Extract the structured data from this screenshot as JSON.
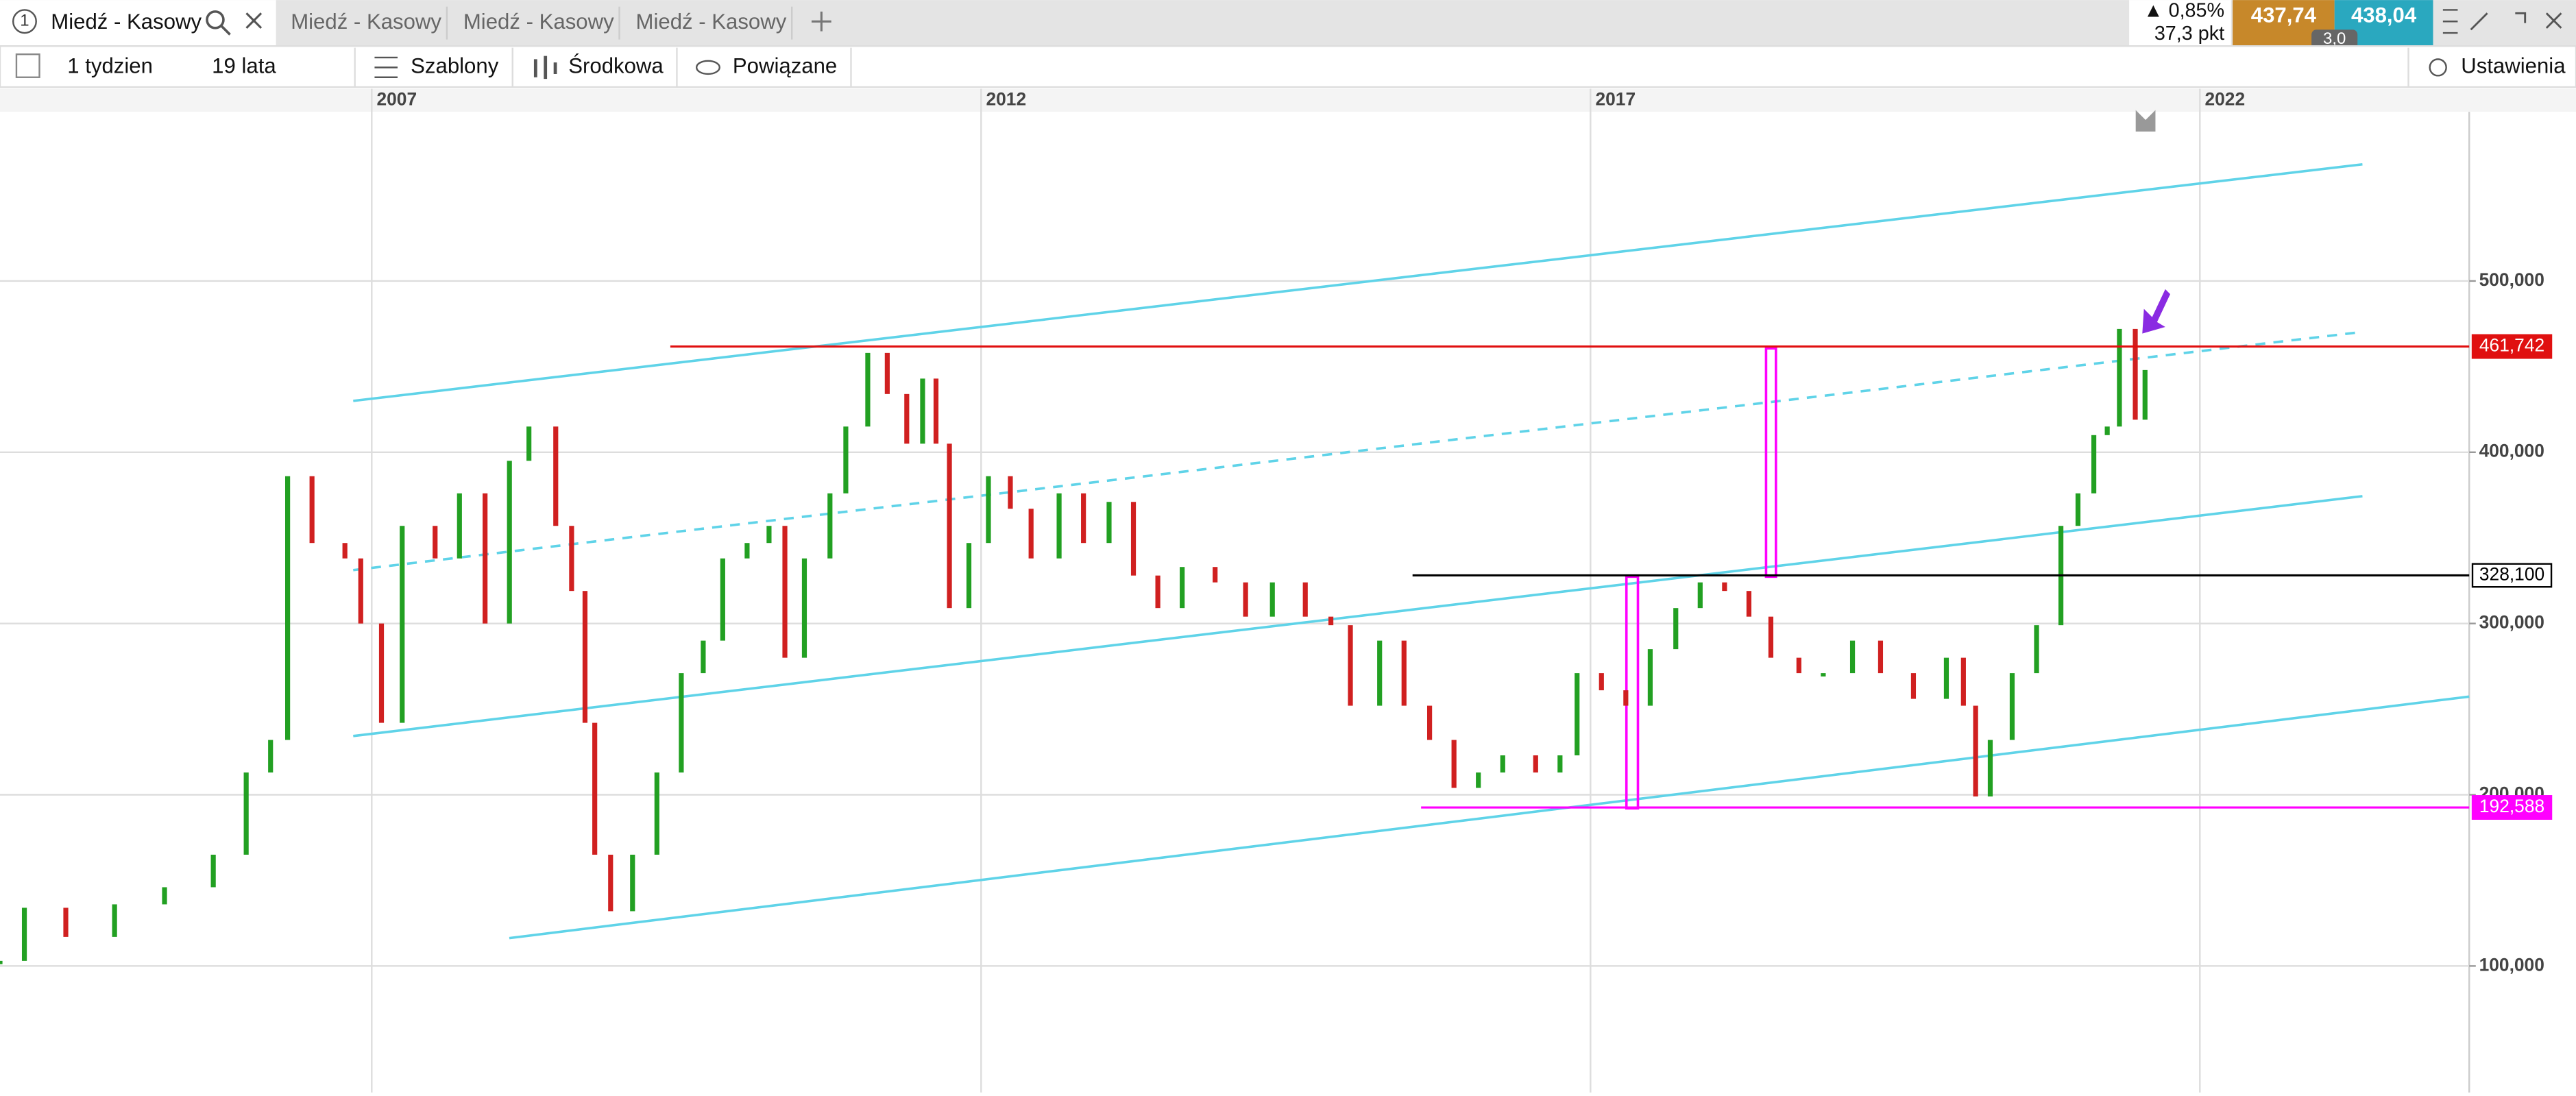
{
  "tabs": [
    "Miedź - Kasowy",
    "Miedź - Kasowy",
    "Miedź - Kasowy",
    "Miedź - Kasowy"
  ],
  "tab_number": "1",
  "quote": {
    "change": "▲ 0,85%",
    "points": "37,3 pkt",
    "bid": "437,74",
    "ask": "438,04",
    "spread": "3,0"
  },
  "toolbar": {
    "interval": "1 tydzien",
    "range": "19 lata",
    "templates": "Szablony",
    "indicator": "Środkowa",
    "related": "Powiązane",
    "settings": "Ustawienia"
  },
  "chart_data": {
    "type": "candlestick",
    "xlim": [
      2003.95,
      2024.21
    ],
    "ylim": [
      26140,
      598800
    ],
    "xticks": [
      2007,
      2012,
      2017,
      2022
    ],
    "yticks": [
      {
        "value": 100000,
        "label": "100,000"
      },
      {
        "value": 200000,
        "label": "200,000"
      },
      {
        "value": 300000,
        "label": "300,000"
      },
      {
        "value": 400000,
        "label": "400,000"
      },
      {
        "value": 500000,
        "label": "500,000"
      }
    ],
    "grid": true,
    "up_color": "#22a022",
    "down_color": "#d02020",
    "levels": [
      {
        "value": 461742,
        "label": "461,742",
        "color": "#e01010",
        "from": 2009.45
      },
      {
        "value": 328100,
        "label": "328,100",
        "color": "#000000",
        "from": 2015.54
      },
      {
        "value": 192588,
        "label": "192,588",
        "color": "#ff00ff",
        "from": 2015.61
      }
    ],
    "x": [
      2003.95,
      2004.15,
      2004.49,
      2004.89,
      2005.3,
      2005.7,
      2005.97,
      2006.17,
      2006.31,
      2006.51,
      2006.78,
      2006.91,
      2007.08,
      2007.25,
      2007.52,
      2007.72,
      2007.93,
      2008.13,
      2008.29,
      2008.51,
      2008.64,
      2008.75,
      2008.83,
      2008.96,
      2009.14,
      2009.34,
      2009.54,
      2009.72,
      2009.88,
      2010.08,
      2010.26,
      2010.39,
      2010.55,
      2010.76,
      2010.89,
      2011.07,
      2011.23,
      2011.39,
      2011.52,
      2011.63,
      2011.74,
      2011.9,
      2012.06,
      2012.24,
      2012.41,
      2012.64,
      2012.84,
      2013.05,
      2013.25,
      2013.45,
      2013.65,
      2013.92,
      2014.17,
      2014.39,
      2014.66,
      2014.87,
      2015.03,
      2015.27,
      2015.47,
      2015.68,
      2015.88,
      2016.08,
      2016.28,
      2016.55,
      2016.75,
      2016.89,
      2017.09,
      2017.29,
      2017.49,
      2017.7,
      2017.9,
      2018.1,
      2018.3,
      2018.48,
      2018.71,
      2018.91,
      2019.15,
      2019.38,
      2019.65,
      2019.92,
      2020.06,
      2020.16,
      2020.28,
      2020.46,
      2020.66,
      2020.86,
      2021.0,
      2021.13,
      2021.24,
      2021.34,
      2021.47,
      2021.55
    ],
    "values": [
      103000,
      134000,
      117000,
      136000,
      146000,
      165000,
      213000,
      232000,
      386000,
      347000,
      338000,
      300000,
      242000,
      357000,
      338000,
      376000,
      300000,
      395000,
      415000,
      357000,
      319000,
      242000,
      165000,
      132000,
      165000,
      213000,
      271000,
      290000,
      338000,
      347000,
      357000,
      280000,
      338000,
      376000,
      415000,
      458000,
      434000,
      405000,
      443000,
      405000,
      309000,
      347000,
      386000,
      367000,
      338000,
      376000,
      347000,
      371000,
      328000,
      309000,
      333000,
      324000,
      304000,
      324000,
      304000,
      299000,
      252000,
      290000,
      252000,
      232000,
      204000,
      213000,
      223000,
      213000,
      223000,
      271000,
      261000,
      252000,
      285000,
      309000,
      324000,
      319000,
      304000,
      280000,
      271000,
      271000,
      290000,
      271000,
      256000,
      280000,
      252000,
      199000,
      232000,
      271000,
      299000,
      357000,
      376000,
      410000,
      415000,
      472000,
      419000,
      448000
    ]
  }
}
